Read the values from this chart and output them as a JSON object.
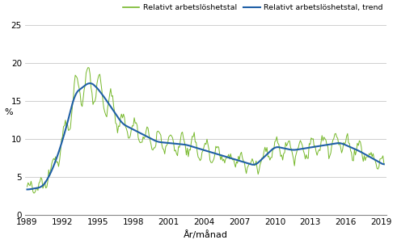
{
  "title": "",
  "ylabel": "%",
  "xlabel": "År/månad",
  "yticks": [
    0,
    5,
    10,
    15,
    20,
    25
  ],
  "xticks": [
    1989,
    1992,
    1995,
    1998,
    2001,
    2004,
    2007,
    2010,
    2013,
    2016,
    2019
  ],
  "legend_labels": [
    "Relativt arbetslöshetstal",
    "Relativt arbetslöshetstal, trend"
  ],
  "line_color_raw": "#76b82a",
  "line_color_trend": "#1f5fa6",
  "grid_color": "#c8c8c8",
  "background_color": "#ffffff",
  "ylim": [
    0,
    26
  ],
  "xlim_start": 1988.83,
  "xlim_end": 2019.5
}
